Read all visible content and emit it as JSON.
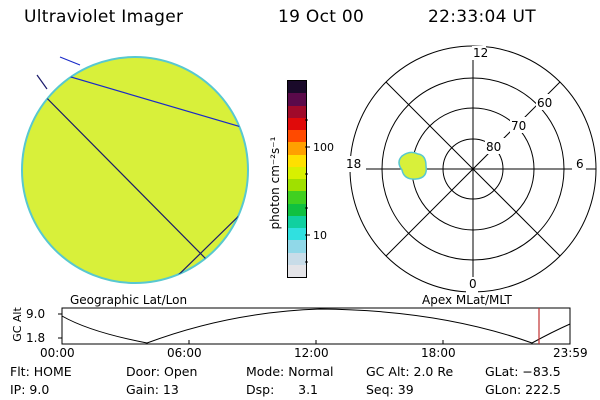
{
  "header": {
    "instrument": "Ultraviolet Imager",
    "date": "19 Oct 00",
    "time": "22:33:04 UT"
  },
  "colorbar": {
    "unit_label": "photon cm⁻²s⁻¹",
    "ticks": [
      "100",
      "10"
    ],
    "colors": [
      "#1a0a2a",
      "#5a0a4a",
      "#a00a2a",
      "#e00a0a",
      "#ff4a00",
      "#ffa000",
      "#ffe000",
      "#d8f000",
      "#a0e000",
      "#40d020",
      "#10c040",
      "#10d0a0",
      "#30e0e0",
      "#90d8e8",
      "#c8dce8",
      "#e4e4e8"
    ]
  },
  "left_panel": {
    "label": "Geographic Lat/Lon",
    "fill_color": "#d8f03a"
  },
  "right_panel": {
    "label": "Apex MLat/MLT",
    "mlt_labels": [
      "12",
      "18",
      "6",
      "0"
    ],
    "mlat_labels": [
      "60",
      "70",
      "80"
    ]
  },
  "altitude_plot": {
    "ylabel": "GC Alt",
    "yticks": [
      "9.0",
      "1.8"
    ],
    "xticks": [
      "00:00",
      "06:00",
      "12:00",
      "18:00",
      "23:59"
    ],
    "marker_color": "#c03030"
  },
  "status": {
    "flt": "Flt:  HOME",
    "door": "Door:  Open",
    "mode": "Mode:  Normal",
    "gc_alt": "GC Alt:  2.0 Re",
    "glat": "GLat:  −83.5",
    "ip": "IP:  9.0",
    "gain": "Gain:  13",
    "dsp": "Dsp:      3.1",
    "seq": "Seq:  39",
    "glon": "GLon:  222.5"
  }
}
